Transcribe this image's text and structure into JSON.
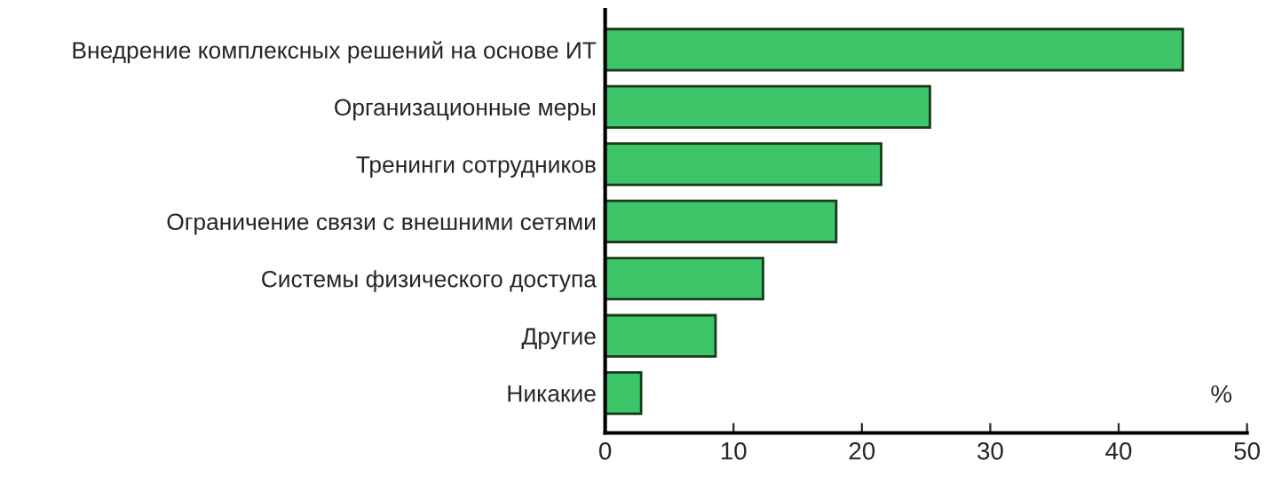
{
  "chart_data": {
    "type": "bar",
    "orientation": "horizontal",
    "xlabel": "%",
    "categories": [
      "Внедрение комплексных решений на основе ИТ",
      "Организационные меры",
      "Тренинги сотрудников",
      "Ограничение связи с внешними сетями",
      "Системы физического доступа",
      "Другие",
      "Никакие"
    ],
    "values": [
      45,
      25.3,
      21.5,
      18,
      12.3,
      8.6,
      2.8
    ],
    "color": "#3cc569",
    "xlim": [
      0,
      50
    ],
    "xticks": [
      0,
      10,
      20,
      30,
      40,
      50
    ],
    "grid": false,
    "legend": false
  }
}
